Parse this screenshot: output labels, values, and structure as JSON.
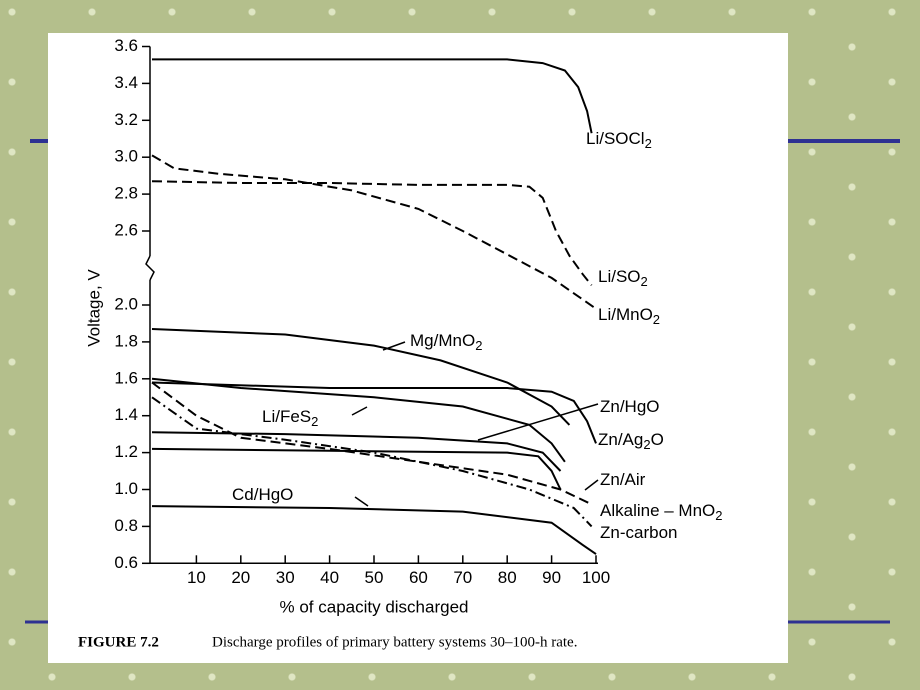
{
  "chart_data": {
    "type": "line",
    "y_label": "Voltage, V",
    "x_label": "% of capacity discharged",
    "caption": {
      "label": "FIGURE 7.2",
      "text": "Discharge profiles of primary battery systems 30–100-h rate."
    },
    "xlim": [
      0,
      100
    ],
    "xticks": [
      10,
      20,
      30,
      40,
      50,
      60,
      70,
      80,
      90,
      100
    ],
    "ylim": [
      0.6,
      3.6
    ],
    "y_break": [
      2.0,
      2.6
    ],
    "yticks": [
      3.6,
      3.4,
      3.2,
      {
        "value": 3,
        "label": "3.0"
      },
      2.8,
      2.6,
      {
        "value": 2,
        "label": "2.0"
      },
      1.8,
      1.6,
      1.4,
      1.2,
      {
        "value": 1,
        "label": "1.0"
      },
      0.8,
      0.6
    ],
    "series": [
      {
        "name": "Li/SOCl2",
        "color": "#000",
        "dash": "solid",
        "x": [
          0,
          40,
          80,
          88,
          93,
          96,
          98,
          99
        ],
        "values": [
          3.53,
          3.53,
          3.53,
          3.51,
          3.47,
          3.38,
          3.25,
          3.13
        ]
      },
      {
        "name": "Li/SO2",
        "color": "#000",
        "dash": "dashed",
        "x": [
          0,
          20,
          40,
          60,
          80,
          85,
          88,
          91,
          94,
          97,
          99
        ],
        "values": [
          2.87,
          2.86,
          2.86,
          2.85,
          2.85,
          2.84,
          2.78,
          2.6,
          2.4,
          2.25,
          2.16
        ]
      },
      {
        "name": "Li/MnO2",
        "color": "#000",
        "dash": "dashed",
        "x": [
          0,
          5,
          15,
          30,
          45,
          60,
          70,
          80,
          90,
          100
        ],
        "values": [
          3.01,
          2.94,
          2.91,
          2.88,
          2.82,
          2.72,
          2.6,
          2.41,
          2.22,
          1.98
        ]
      },
      {
        "name": "Mg/MnO2",
        "color": "#000",
        "dash": "solid",
        "x": [
          0,
          30,
          50,
          65,
          80,
          90,
          94
        ],
        "values": [
          1.87,
          1.84,
          1.78,
          1.7,
          1.58,
          1.45,
          1.35
        ]
      },
      {
        "name": "Zn/Ag2O",
        "color": "#000",
        "dash": "solid",
        "x": [
          0,
          40,
          80,
          90,
          95,
          98,
          100
        ],
        "values": [
          1.58,
          1.55,
          1.55,
          1.53,
          1.48,
          1.37,
          1.25
        ]
      },
      {
        "name": "Li/FeS2",
        "color": "#000",
        "dash": "solid",
        "x": [
          0,
          20,
          50,
          70,
          85,
          90,
          93
        ],
        "values": [
          1.6,
          1.55,
          1.5,
          1.45,
          1.35,
          1.25,
          1.15
        ]
      },
      {
        "name": "Zn/HgO",
        "color": "#000",
        "dash": "solid",
        "x": [
          0,
          30,
          60,
          80,
          88,
          92
        ],
        "values": [
          1.31,
          1.3,
          1.28,
          1.25,
          1.2,
          1.1
        ]
      },
      {
        "name": "Zn/Air",
        "color": "#000",
        "dash": "solid",
        "x": [
          0,
          40,
          80,
          87,
          90,
          92
        ],
        "values": [
          1.22,
          1.21,
          1.2,
          1.18,
          1.1,
          1.0
        ]
      },
      {
        "name": "Alkaline – MnO2",
        "color": "#000",
        "dash": "dashed",
        "x": [
          0,
          10,
          20,
          40,
          60,
          80,
          92,
          99
        ],
        "values": [
          1.58,
          1.4,
          1.28,
          1.22,
          1.15,
          1.08,
          1.0,
          0.92
        ]
      },
      {
        "name": "Zn-carbon",
        "color": "#000",
        "dash": "dashdot",
        "x": [
          0,
          10,
          30,
          50,
          70,
          85,
          95,
          99
        ],
        "values": [
          1.5,
          1.33,
          1.27,
          1.2,
          1.1,
          1.0,
          0.9,
          0.8
        ]
      },
      {
        "name": "Cd/HgO",
        "color": "#000",
        "dash": "solid",
        "x": [
          0,
          40,
          70,
          90,
          97,
          100
        ],
        "values": [
          0.91,
          0.9,
          0.88,
          0.82,
          0.7,
          0.65
        ]
      }
    ]
  }
}
